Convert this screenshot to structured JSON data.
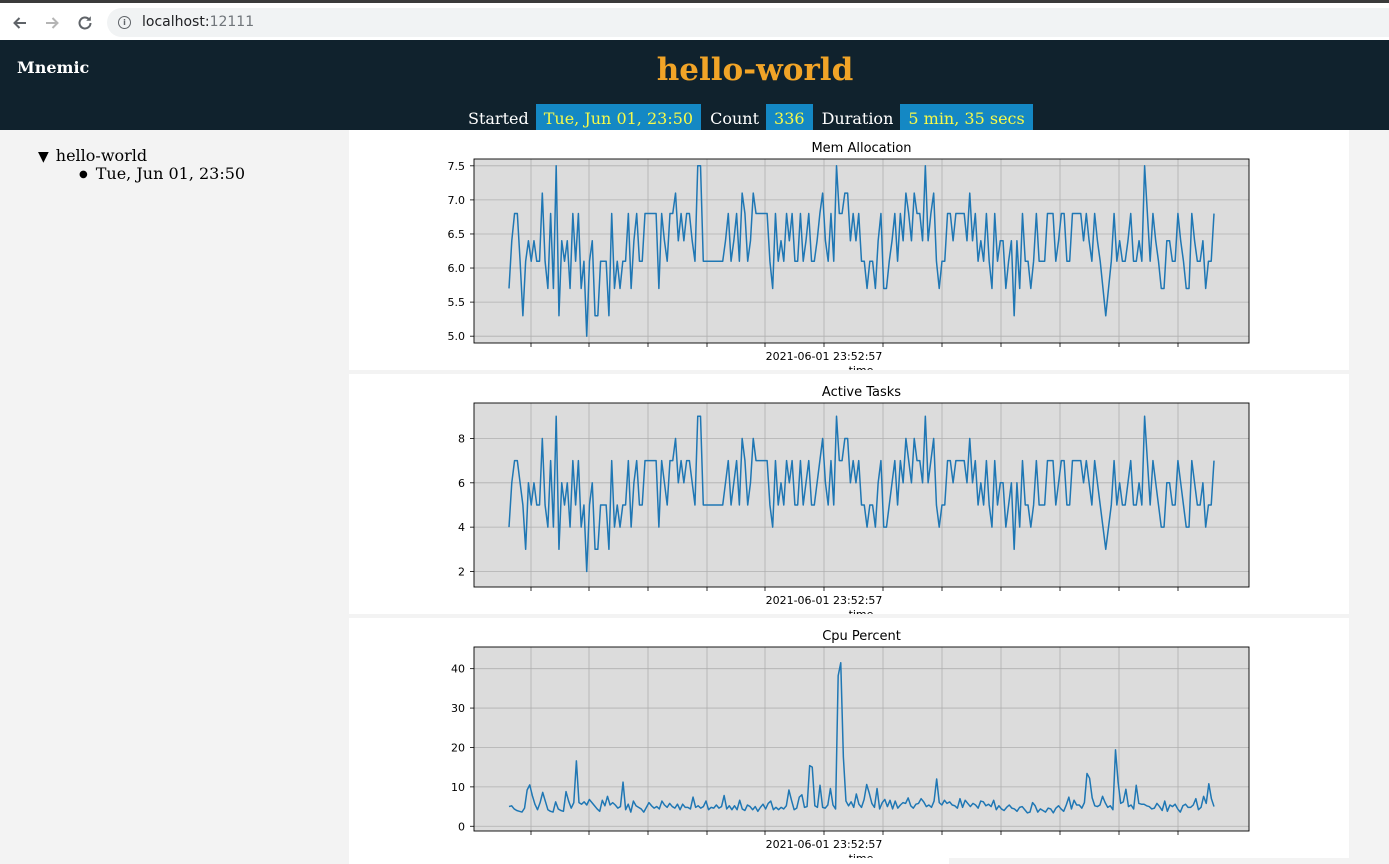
{
  "browser": {
    "back_icon": "arrow-left-icon",
    "forward_icon": "arrow-right-icon",
    "reload_icon": "reload-icon",
    "info_icon": "info-icon",
    "url_host": "localhost:",
    "url_port": "12111"
  },
  "header": {
    "brand": "Mnemic",
    "title": "hello-world",
    "stats": {
      "started_label": "Started",
      "started_value": "Tue, Jun 01, 23:50",
      "count_label": "Count",
      "count_value": "336",
      "duration_label": "Duration",
      "duration_value": "5 min, 35 secs"
    }
  },
  "sidebar": {
    "root": {
      "toggle": "▼",
      "label": "hello-world"
    },
    "children": [
      {
        "bullet": "●",
        "label": "Tue, Jun 01, 23:50"
      }
    ]
  },
  "colors": {
    "header_bg": "#10222d",
    "title": "#f1a427",
    "stat_bg": "#1488c4",
    "stat_text": "#f6f94a",
    "line": "#1f77b4",
    "plot_bg": "#dcdcdc"
  },
  "chart_data": [
    {
      "type": "line",
      "title": "Mem Allocation",
      "xlabel": "time",
      "xtick_label": "2021-06-01 23:52:57",
      "ylim": [
        4.9,
        7.6
      ],
      "yticks": [
        "5.0",
        "5.5",
        "6.0",
        "6.5",
        "7.0",
        "7.5"
      ],
      "ytick_values": [
        5.0,
        5.5,
        6.0,
        6.5,
        7.0,
        7.5
      ],
      "grid": true,
      "series": [
        {
          "values": [
            5.7,
            6.4,
            6.8,
            6.8,
            6.1,
            5.3,
            6.1,
            6.4,
            6.1,
            6.4,
            6.1,
            6.1,
            7.1,
            6.1,
            5.7,
            6.8,
            5.7,
            7.5,
            5.3,
            6.4,
            6.1,
            6.4,
            5.7,
            6.8,
            6.1,
            6.8,
            5.7,
            6.1,
            5.0,
            6.1,
            6.4,
            5.3,
            5.3,
            6.1,
            6.1,
            6.1,
            5.3,
            6.8,
            5.7,
            6.1,
            5.7,
            6.1,
            6.1,
            6.8,
            5.7,
            6.4,
            6.8,
            6.1,
            6.1,
            6.8,
            6.8,
            6.8,
            6.8,
            6.8,
            5.7,
            6.8,
            6.4,
            6.1,
            6.8,
            6.8,
            7.1,
            6.4,
            6.8,
            6.4,
            6.8,
            6.8,
            6.4,
            6.1,
            7.5,
            7.5,
            6.1,
            6.1,
            6.1,
            6.1,
            6.1,
            6.1,
            6.1,
            6.1,
            6.4,
            6.8,
            6.1,
            6.4,
            6.8,
            6.1,
            7.1,
            6.8,
            6.1,
            6.4,
            7.1,
            6.8,
            6.8,
            6.8,
            6.8,
            6.8,
            6.1,
            5.7,
            6.8,
            6.1,
            6.4,
            6.1,
            6.8,
            6.4,
            6.8,
            6.1,
            6.1,
            6.8,
            6.1,
            6.4,
            6.8,
            6.1,
            6.1,
            6.4,
            6.8,
            7.1,
            6.4,
            6.1,
            6.8,
            6.1,
            7.5,
            6.8,
            6.8,
            7.1,
            7.1,
            6.4,
            6.8,
            6.4,
            6.8,
            6.1,
            6.1,
            5.7,
            6.1,
            6.1,
            5.7,
            6.4,
            6.8,
            5.7,
            5.7,
            6.1,
            6.4,
            6.8,
            6.1,
            6.8,
            6.4,
            7.1,
            6.8,
            6.4,
            7.1,
            6.8,
            6.8,
            6.4,
            7.5,
            6.4,
            6.8,
            7.1,
            6.1,
            5.7,
            6.1,
            6.1,
            6.8,
            6.8,
            6.4,
            6.8,
            6.8,
            6.8,
            6.8,
            6.4,
            7.1,
            6.4,
            6.8,
            6.1,
            6.4,
            6.1,
            6.8,
            6.1,
            5.7,
            6.8,
            6.1,
            6.4,
            6.4,
            5.7,
            6.1,
            6.4,
            5.3,
            6.4,
            5.7,
            6.8,
            6.1,
            6.1,
            5.7,
            6.1,
            6.8,
            6.1,
            6.1,
            6.1,
            6.8,
            6.8,
            6.8,
            6.1,
            6.4,
            6.8,
            6.8,
            6.1,
            6.1,
            6.8,
            6.8,
            6.8,
            6.8,
            6.4,
            6.8,
            6.4,
            6.1,
            6.8,
            6.4,
            6.1,
            5.7,
            5.3,
            5.7,
            6.1,
            6.8,
            6.1,
            6.4,
            6.1,
            6.1,
            6.4,
            6.8,
            6.1,
            6.1,
            6.4,
            6.1,
            7.5,
            6.8,
            6.1,
            6.8,
            6.4,
            6.1,
            5.7,
            5.7,
            6.4,
            6.4,
            6.1,
            6.1,
            6.8,
            6.4,
            6.1,
            5.7,
            5.7,
            6.8,
            6.4,
            6.1,
            6.1,
            6.4,
            5.7,
            6.1,
            6.1,
            6.8
          ]
        }
      ]
    },
    {
      "type": "line",
      "title": "Active Tasks",
      "xlabel": "time",
      "xtick_label": "2021-06-01 23:52:57",
      "ylim": [
        1.3,
        9.6
      ],
      "yticks": [
        "2",
        "4",
        "6",
        "8"
      ],
      "ytick_values": [
        2,
        4,
        6,
        8
      ],
      "grid": true,
      "series": [
        {
          "values": [
            4,
            6,
            7,
            7,
            6,
            5,
            3,
            6,
            5,
            6,
            5,
            5,
            8,
            5,
            4,
            7,
            4,
            9,
            3,
            6,
            5,
            6,
            4,
            7,
            5,
            7,
            4,
            5,
            2,
            5,
            6,
            3,
            3,
            5,
            5,
            5,
            3,
            7,
            4,
            5,
            4,
            5,
            5,
            7,
            4,
            6,
            7,
            5,
            5,
            7,
            7,
            7,
            7,
            7,
            4,
            7,
            6,
            5,
            7,
            7,
            8,
            6,
            7,
            6,
            7,
            7,
            6,
            5,
            9,
            9,
            5,
            5,
            5,
            5,
            5,
            5,
            5,
            5,
            6,
            7,
            5,
            6,
            7,
            5,
            8,
            7,
            5,
            6,
            8,
            7,
            7,
            7,
            7,
            7,
            5,
            4,
            7,
            5,
            6,
            5,
            7,
            6,
            7,
            5,
            5,
            7,
            5,
            6,
            7,
            5,
            5,
            6,
            7,
            8,
            6,
            5,
            7,
            5,
            9,
            7,
            7,
            8,
            8,
            6,
            7,
            6,
            7,
            5,
            5,
            4,
            5,
            5,
            4,
            6,
            7,
            4,
            4,
            5,
            6,
            7,
            5,
            7,
            6,
            8,
            7,
            6,
            8,
            7,
            7,
            6,
            9,
            6,
            7,
            8,
            5,
            4,
            5,
            5,
            7,
            7,
            6,
            7,
            7,
            7,
            7,
            6,
            8,
            6,
            7,
            5,
            6,
            5,
            7,
            5,
            4,
            7,
            5,
            6,
            6,
            4,
            5,
            6,
            3,
            6,
            4,
            7,
            5,
            5,
            4,
            5,
            7,
            5,
            5,
            5,
            7,
            7,
            7,
            5,
            6,
            7,
            7,
            5,
            5,
            7,
            7,
            7,
            7,
            6,
            7,
            6,
            5,
            7,
            6,
            5,
            4,
            3,
            4,
            5,
            7,
            5,
            6,
            5,
            5,
            6,
            7,
            5,
            5,
            6,
            5,
            9,
            7,
            5,
            7,
            6,
            5,
            4,
            4,
            6,
            6,
            5,
            5,
            7,
            6,
            5,
            4,
            4,
            7,
            6,
            5,
            5,
            6,
            4,
            5,
            5,
            7
          ]
        }
      ]
    },
    {
      "type": "line",
      "title": "Cpu Percent",
      "xlabel": "time",
      "xtick_label": "2021-06-01 23:52:57",
      "ylim": [
        -1.2,
        45.5
      ],
      "yticks": [
        "0",
        "10",
        "20",
        "30",
        "40"
      ],
      "ytick_values": [
        0,
        10,
        20,
        30,
        40
      ],
      "grid": true,
      "series": [
        {
          "values": [
            5.0,
            5.2,
            4.4,
            4.0,
            3.8,
            3.6,
            4.6,
            9.2,
            10.5,
            7.8,
            5.6,
            4.2,
            6.0,
            8.6,
            6.4,
            4.2,
            3.8,
            3.6,
            6.2,
            4.4,
            4.0,
            3.8,
            8.8,
            6.4,
            4.6,
            6.0,
            16.6,
            6.0,
            5.6,
            6.2,
            5.4,
            6.8,
            6.0,
            5.2,
            4.4,
            3.8,
            6.6,
            5.2,
            7.6,
            5.4,
            6.0,
            5.4,
            4.6,
            5.0,
            11.2,
            4.2,
            5.6,
            3.6,
            6.4,
            5.2,
            4.8,
            4.4,
            3.6,
            4.8,
            6.0,
            5.2,
            4.6,
            5.0,
            4.4,
            6.4,
            5.4,
            4.8,
            5.8,
            5.0,
            4.6,
            5.6,
            4.2,
            5.6,
            4.8,
            4.8,
            4.4,
            7.4,
            4.8,
            5.2,
            4.6,
            5.0,
            6.4,
            4.2,
            4.8,
            4.6,
            5.4,
            4.6,
            5.0,
            7.8,
            4.4,
            5.2,
            4.2,
            5.2,
            4.2,
            6.6,
            4.4,
            4.0,
            5.4,
            5.0,
            4.2,
            5.0,
            3.8,
            4.8,
            5.6,
            4.4,
            5.8,
            6.4,
            4.2,
            4.8,
            4.2,
            4.8,
            4.4,
            5.2,
            9.2,
            6.6,
            4.2,
            4.6,
            7.4,
            8.0,
            4.8,
            5.0,
            15.4,
            15.0,
            5.2,
            4.8,
            10.4,
            4.8,
            4.6,
            5.4,
            9.6,
            5.4,
            4.4,
            38.2,
            41.5,
            17.6,
            6.4,
            5.2,
            6.2,
            4.8,
            8.2,
            5.6,
            4.8,
            6.8,
            10.6,
            8.4,
            5.8,
            4.8,
            9.6,
            4.4,
            6.0,
            6.8,
            5.0,
            6.6,
            4.4,
            6.4,
            4.6,
            5.4,
            6.0,
            5.8,
            7.2,
            5.2,
            4.6,
            5.6,
            5.8,
            7.0,
            6.2,
            5.0,
            5.4,
            4.8,
            6.4,
            12.0,
            6.0,
            5.4,
            6.6,
            5.8,
            6.2,
            5.4,
            5.2,
            4.6,
            7.0,
            4.8,
            6.6,
            5.8,
            5.0,
            5.8,
            5.4,
            4.6,
            6.4,
            6.2,
            5.2,
            5.6,
            5.0,
            6.6,
            4.2,
            5.2,
            4.4,
            4.0,
            4.8,
            5.4,
            4.6,
            4.4,
            3.8,
            4.8,
            5.0,
            4.2,
            3.4,
            3.6,
            6.0,
            5.2,
            3.6,
            4.4,
            4.0,
            3.6,
            4.6,
            4.4,
            3.4,
            4.6,
            5.2,
            4.4,
            3.8,
            5.4,
            7.4,
            4.4,
            6.6,
            5.4,
            5.4,
            4.6,
            6.0,
            13.4,
            12.2,
            7.2,
            5.2,
            5.0,
            5.4,
            7.6,
            6.0,
            4.8,
            5.2,
            4.2,
            19.4,
            11.2,
            5.8,
            6.2,
            9.4,
            5.0,
            5.4,
            4.4,
            10.4,
            5.8,
            5.6,
            5.6,
            5.2,
            5.0,
            4.4,
            4.6,
            5.8,
            5.0,
            4.0,
            6.4,
            3.8,
            5.4,
            5.0,
            5.6,
            4.4,
            3.6,
            5.2,
            5.6,
            4.8,
            4.8,
            5.4,
            7.0,
            4.2,
            4.8,
            7.6,
            5.8,
            10.8,
            7.0,
            5.0
          ]
        }
      ]
    }
  ]
}
